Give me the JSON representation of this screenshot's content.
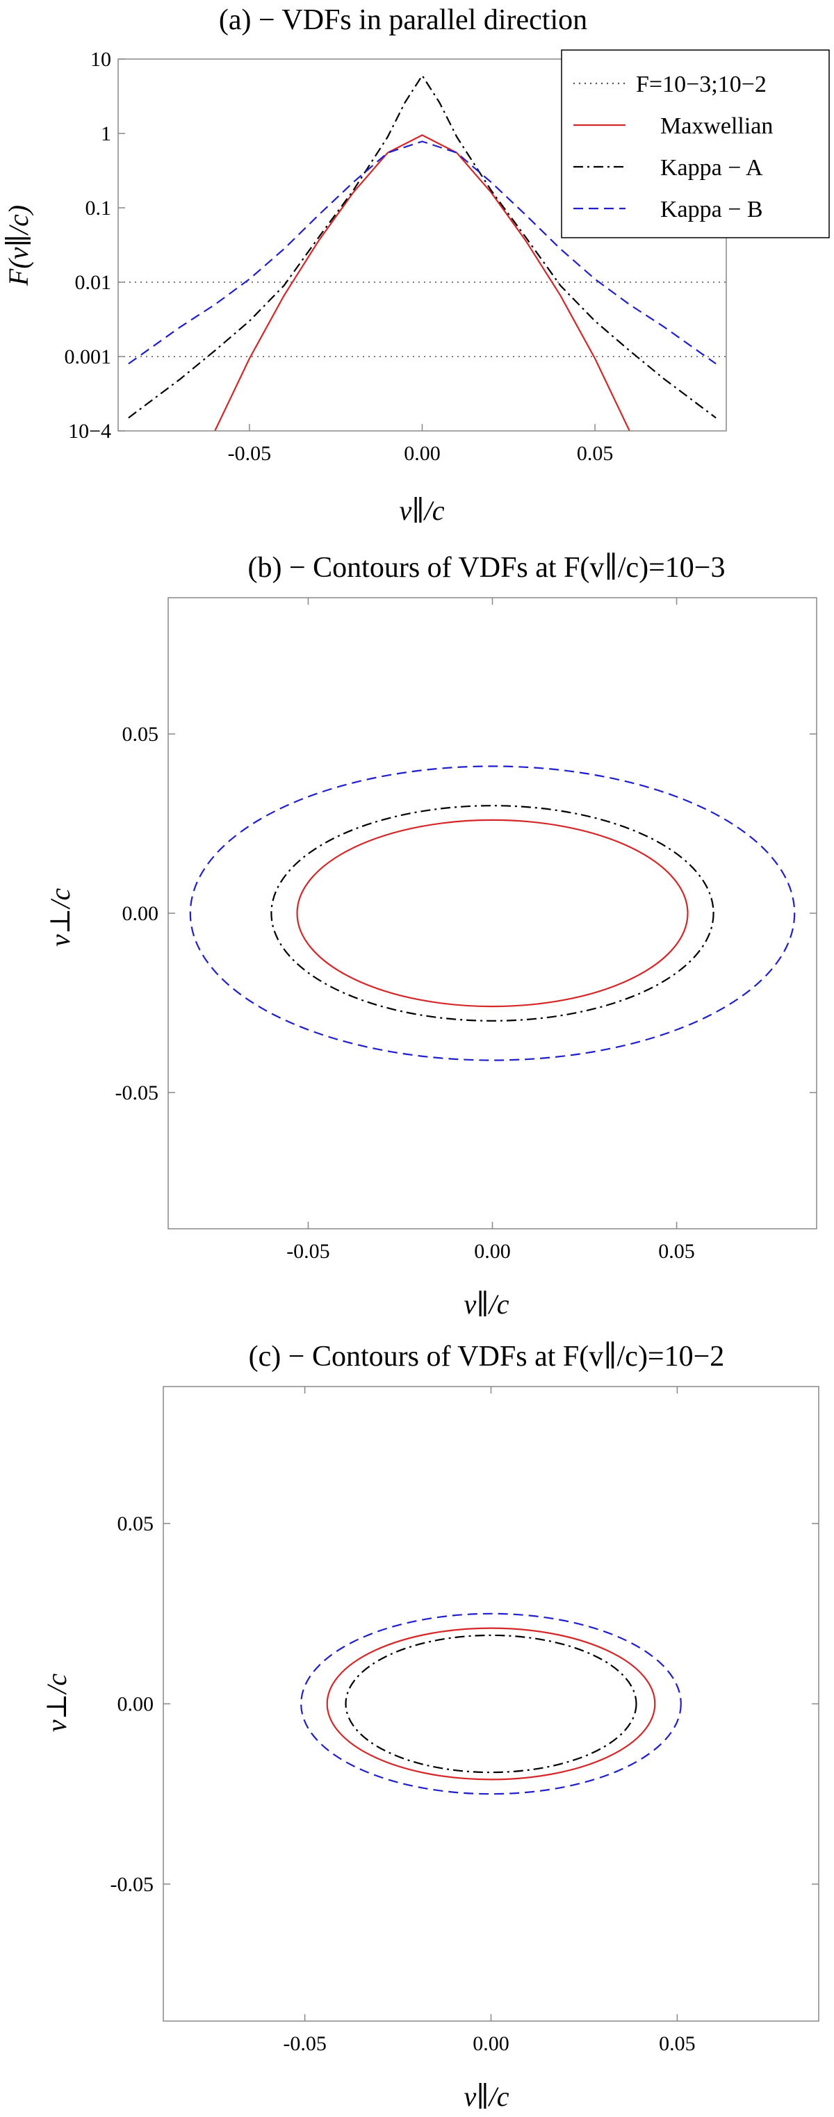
{
  "chart_data": [
    {
      "type": "line",
      "title": "(a) − VDFs in parallel direction",
      "xlabel": "v∥/c",
      "ylabel": "F(v∥/c)",
      "y_scale": "log",
      "xlim": [
        -0.088,
        0.088
      ],
      "ylim": [
        0.0001,
        10
      ],
      "x_ticks": [
        "-0.05",
        "0.00",
        "0.05"
      ],
      "y_ticks": [
        "10",
        "1",
        "0.1",
        "0.01",
        "0.001",
        "10−4"
      ],
      "legend_position": "top-right",
      "legend": [
        "F=10−3;10−2",
        "Maxwellian",
        "Kappa − A",
        "Kappa − B"
      ],
      "reference_lines": [
        0.001,
        0.01
      ],
      "series": [
        {
          "name": "Maxwellian",
          "color": "#d62728",
          "style": "solid",
          "x": [
            -0.06,
            -0.05,
            -0.04,
            -0.03,
            -0.02,
            -0.01,
            0.0,
            0.01,
            0.02,
            0.03,
            0.04,
            0.05,
            0.06
          ],
          "y": [
            0.0001,
            0.00094,
            0.0066,
            0.036,
            0.16,
            0.55,
            0.95,
            0.55,
            0.16,
            0.036,
            0.0066,
            0.00094,
            0.0001
          ]
        },
        {
          "name": "Kappa − A",
          "color": "#000000",
          "style": "dashdot",
          "x": [
            -0.085,
            -0.07,
            -0.06,
            -0.05,
            -0.04,
            -0.03,
            -0.02,
            -0.01,
            -0.005,
            0.0,
            0.005,
            0.01,
            0.02,
            0.03,
            0.04,
            0.05,
            0.06,
            0.07,
            0.085
          ],
          "y": [
            0.00015,
            0.0005,
            0.0012,
            0.003,
            0.009,
            0.04,
            0.17,
            0.9,
            2.6,
            6.0,
            2.6,
            0.9,
            0.17,
            0.04,
            0.009,
            0.003,
            0.0012,
            0.0005,
            0.00015
          ]
        },
        {
          "name": "Kappa − B",
          "color": "#1f1fcf",
          "style": "dashed",
          "x": [
            -0.085,
            -0.07,
            -0.06,
            -0.05,
            -0.04,
            -0.03,
            -0.02,
            -0.01,
            0.0,
            0.01,
            0.02,
            0.03,
            0.04,
            0.05,
            0.06,
            0.07,
            0.085
          ],
          "y": [
            0.0008,
            0.0025,
            0.005,
            0.011,
            0.028,
            0.08,
            0.22,
            0.55,
            0.78,
            0.55,
            0.22,
            0.08,
            0.028,
            0.011,
            0.005,
            0.0025,
            0.0008
          ]
        }
      ]
    },
    {
      "type": "line",
      "title": "(b) − Contours of VDFs at F(v∥/c)=10−3",
      "xlabel": "v∥/c",
      "ylabel": "v⊥/c",
      "xlim": [
        -0.088,
        0.088
      ],
      "ylim": [
        -0.088,
        0.088
      ],
      "x_ticks": [
        "-0.05",
        "0.00",
        "0.05"
      ],
      "y_ticks": [
        "0.05",
        "0.00",
        "-0.05"
      ],
      "series": [
        {
          "name": "Maxwellian",
          "color": "#d62728",
          "style": "solid",
          "shape": "ellipse",
          "semi_axes": [
            0.053,
            0.026
          ]
        },
        {
          "name": "Kappa − A",
          "color": "#000000",
          "style": "dashdot",
          "shape": "ellipse",
          "semi_axes": [
            0.06,
            0.03
          ]
        },
        {
          "name": "Kappa − B",
          "color": "#1f1fcf",
          "style": "dashed",
          "shape": "ellipse",
          "semi_axes": [
            0.082,
            0.041
          ]
        }
      ]
    },
    {
      "type": "line",
      "title": "(c) − Contours of VDFs at F(v∥/c)=10−2",
      "xlabel": "v∥/c",
      "ylabel": "v⊥/c",
      "xlim": [
        -0.088,
        0.088
      ],
      "ylim": [
        -0.088,
        0.088
      ],
      "x_ticks": [
        "-0.05",
        "0.00",
        "0.05"
      ],
      "y_ticks": [
        "0.05",
        "0.00",
        "-0.05"
      ],
      "series": [
        {
          "name": "Maxwellian",
          "color": "#d62728",
          "style": "solid",
          "shape": "ellipse",
          "semi_axes": [
            0.044,
            0.021
          ]
        },
        {
          "name": "Kappa − A",
          "color": "#000000",
          "style": "dashdot",
          "shape": "ellipse",
          "semi_axes": [
            0.039,
            0.019
          ]
        },
        {
          "name": "Kappa − B",
          "color": "#1f1fcf",
          "style": "dashed",
          "shape": "ellipse",
          "semi_axes": [
            0.051,
            0.025
          ]
        }
      ]
    }
  ]
}
